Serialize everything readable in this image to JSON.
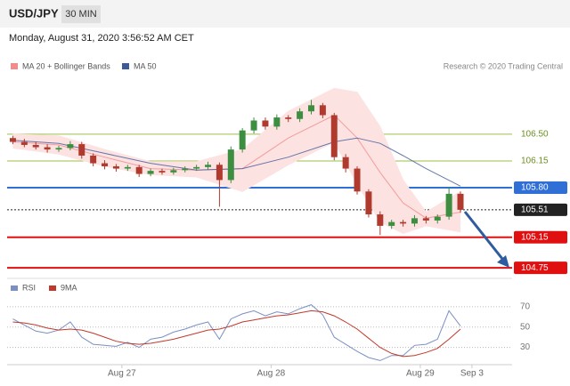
{
  "header": {
    "symbol": "USD/JPY",
    "interval": "30 MIN",
    "timestamp": "Monday, August 31, 2020 3:56:52 AM CET"
  },
  "chart_data": [
    {
      "type": "candlestick",
      "credit": "Research © 2020 Trading Central",
      "xlim": [
        -0.5,
        43.5
      ],
      "ylim": [
        104.67,
        107.21
      ],
      "up_color": "#3e8e41",
      "down_color": "#b03a2e",
      "open": [
        106.45,
        106.4,
        106.36,
        106.33,
        106.3,
        106.32,
        106.37,
        106.22,
        106.12,
        106.08,
        106.05,
        106.07,
        105.98,
        106.02,
        106.0,
        106.03,
        106.05,
        106.07,
        106.1,
        105.9,
        106.3,
        106.55,
        106.68,
        106.6,
        106.72,
        106.7,
        106.8,
        106.88,
        106.75,
        106.2,
        106.05,
        105.75,
        105.45,
        105.3,
        105.35,
        105.33,
        105.4,
        105.37,
        105.42,
        105.72
      ],
      "high": [
        106.48,
        106.44,
        106.4,
        106.37,
        106.35,
        106.41,
        106.4,
        106.25,
        106.16,
        106.11,
        106.1,
        106.1,
        106.05,
        106.05,
        106.06,
        106.08,
        106.1,
        106.14,
        106.13,
        106.34,
        106.58,
        106.72,
        106.72,
        106.76,
        106.75,
        106.84,
        106.95,
        106.91,
        106.78,
        106.24,
        106.08,
        105.78,
        105.49,
        105.38,
        105.38,
        105.44,
        105.43,
        105.45,
        105.8,
        105.75
      ],
      "low": [
        106.37,
        106.33,
        106.3,
        106.26,
        106.27,
        106.29,
        106.18,
        106.08,
        106.04,
        106.01,
        106.02,
        105.94,
        105.95,
        105.97,
        105.97,
        106.0,
        106.02,
        106.04,
        105.55,
        105.86,
        106.26,
        106.51,
        106.56,
        106.56,
        106.66,
        106.66,
        106.76,
        106.71,
        106.16,
        106.0,
        105.71,
        105.41,
        105.18,
        105.26,
        105.29,
        105.29,
        105.33,
        105.33,
        105.38,
        105.47
      ],
      "close": [
        106.4,
        106.36,
        106.33,
        106.3,
        106.32,
        106.37,
        106.22,
        106.12,
        106.08,
        106.05,
        106.07,
        105.98,
        106.02,
        106.0,
        106.03,
        106.05,
        106.07,
        106.1,
        105.9,
        106.3,
        106.55,
        106.68,
        106.6,
        106.72,
        106.7,
        106.8,
        106.88,
        106.75,
        106.2,
        106.05,
        105.75,
        105.45,
        105.3,
        105.35,
        105.33,
        105.4,
        105.37,
        105.42,
        105.72,
        105.51
      ],
      "series": [
        {
          "name": "MA 20 + Bollinger Bands",
          "color": "#f08c8c",
          "band_color": "#fde2e2",
          "x": [
            0,
            4,
            8,
            12,
            16,
            20,
            24,
            28,
            30,
            32,
            34,
            36,
            39
          ],
          "values": [
            106.4,
            106.36,
            106.2,
            106.05,
            106.03,
            106.05,
            106.45,
            106.75,
            106.45,
            106.0,
            105.6,
            105.4,
            105.48
          ],
          "upper": [
            106.5,
            106.48,
            106.3,
            106.14,
            106.14,
            106.3,
            106.8,
            107.1,
            107.05,
            106.6,
            105.9,
            105.48,
            105.75
          ],
          "lower": [
            106.32,
            106.24,
            106.08,
            105.97,
            105.94,
            105.75,
            106.1,
            106.4,
            105.85,
            105.35,
            105.2,
            105.3,
            105.22
          ]
        },
        {
          "name": "MA 50",
          "color": "#3d5a98",
          "x": [
            0,
            4,
            8,
            12,
            16,
            20,
            24,
            28,
            30,
            32,
            34,
            36,
            39
          ],
          "values": [
            106.42,
            106.38,
            106.25,
            106.12,
            106.03,
            106.05,
            106.2,
            106.4,
            106.45,
            106.38,
            106.22,
            106.05,
            105.82
          ]
        }
      ],
      "levels": [
        {
          "value": 106.5,
          "label": "106.50",
          "color": "#9cbf4a",
          "boxed": false
        },
        {
          "value": 106.15,
          "label": "106.15",
          "color": "#9cbf4a",
          "boxed": false
        },
        {
          "value": 105.8,
          "label": "105.80",
          "color": "#2f6fd6",
          "boxed": true
        },
        {
          "value": 105.51,
          "label": "105.51",
          "color": "#222222",
          "boxed": true,
          "dotted": true
        },
        {
          "value": 105.15,
          "label": "105.15",
          "color": "#e01010",
          "boxed": true
        },
        {
          "value": 104.75,
          "label": "104.75",
          "color": "#e01010",
          "boxed": true
        }
      ]
    },
    {
      "type": "line",
      "xlim": [
        -0.5,
        43.5
      ],
      "ylim": [
        13,
        83
      ],
      "yticks": [
        30,
        50,
        70
      ],
      "xticks": [
        {
          "value": 9.5,
          "label": "Aug 27"
        },
        {
          "value": 22.5,
          "label": "Aug 28"
        },
        {
          "value": 35.5,
          "label": "Aug 29"
        },
        {
          "value": 40,
          "label": "Sep 3"
        }
      ],
      "series": [
        {
          "name": "RSI",
          "color": "#7b8fc4",
          "values": [
            58,
            52,
            46,
            44,
            47,
            55,
            40,
            33,
            32,
            31,
            35,
            30,
            38,
            40,
            45,
            48,
            52,
            55,
            38,
            58,
            63,
            66,
            61,
            65,
            63,
            68,
            72,
            62,
            40,
            33,
            26,
            20,
            17,
            22,
            22,
            32,
            33,
            38,
            66,
            51
          ]
        },
        {
          "name": "9MA",
          "color": "#c0392b",
          "values": [
            55,
            54,
            52,
            49,
            47,
            48,
            47,
            44,
            40,
            36,
            34,
            33,
            34,
            36,
            38,
            41,
            44,
            47,
            48,
            51,
            55,
            57,
            59,
            61,
            62,
            64,
            66,
            65,
            61,
            55,
            48,
            39,
            30,
            24,
            21,
            22,
            25,
            29,
            38,
            48
          ]
        }
      ]
    }
  ]
}
